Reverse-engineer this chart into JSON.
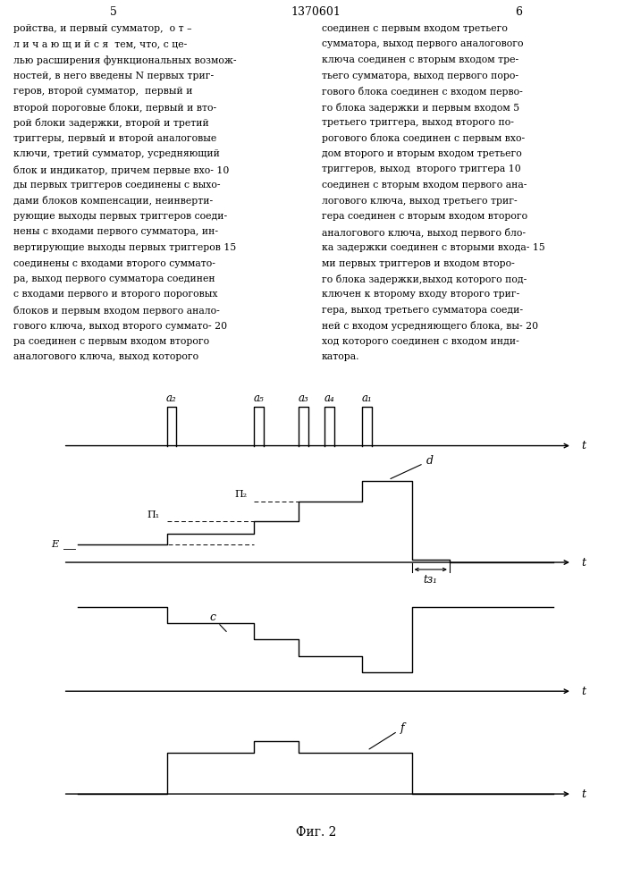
{
  "page_num_left": "5",
  "page_num_center": "1370601",
  "page_num_right": "6",
  "fig_caption": "Фиг. 2",
  "lw": 1.0,
  "text_left_lines": [
    "ройства, и первый сумматор,  о т –",
    "л и ч а ю щ и й с я  тем, что, с це-",
    "лью расширения функциональных возмож-",
    "ностей, в него введены N первых триг-",
    "геров, второй сумматор,  первый и",
    "второй пороговые блоки, первый и вто-",
    "рой блоки задержки, второй и третий",
    "триггеры, первый и второй аналоговые",
    "ключи, третий сумматор, усредняющий",
    "блок и индикатор, причем первые вхо- 10",
    "ды первых триггеров соединены с выхо-",
    "дами блоков компенсации, неинверти-",
    "рующие выходы первых триггеров соеди-",
    "нены с входами первого сумматора, ин-",
    "вертирующие выходы первых триггеров 15",
    "соединены с входами второго суммато-",
    "ра, выход первого сумматора соединен",
    "с входами первого и второго пороговых",
    "блоков и первым входом первого анало-",
    "гового ключа, выход второго суммато- 20",
    "ра соединен с первым входом второго",
    "аналогового ключа, выход которого"
  ],
  "text_right_lines": [
    "соединен с первым входом третьего",
    "сумматора, выход первого аналогового",
    "ключа соединен с вторым входом тре-",
    "тьего сумматора, выход первого поро-",
    "гового блока соединен с входом перво-",
    "го блока задержки и первым входом 5",
    "третьего триггера, выход второго по-",
    "рогового блока соединен с первым вхо-",
    "дом второго и вторым входом третьего",
    "триггеров, выход  второго триггера 10",
    "соединен с вторым входом первого ана-",
    "логового ключа, выход третьего триг-",
    "гера соединен с вторым входом второго",
    "аналогового ключа, выход первого бло-",
    "ка задержки соединен с вторыми входа- 15",
    "ми первых триггеров и входом второ-",
    "го блока задержки,выход которого под-",
    "ключен к второму входу второго триг-",
    "гера, выход третьего сумматора соеди-",
    "ней с входом усредняющего блока, вы- 20",
    "ход которого соединен с входом инди-",
    "катора."
  ]
}
